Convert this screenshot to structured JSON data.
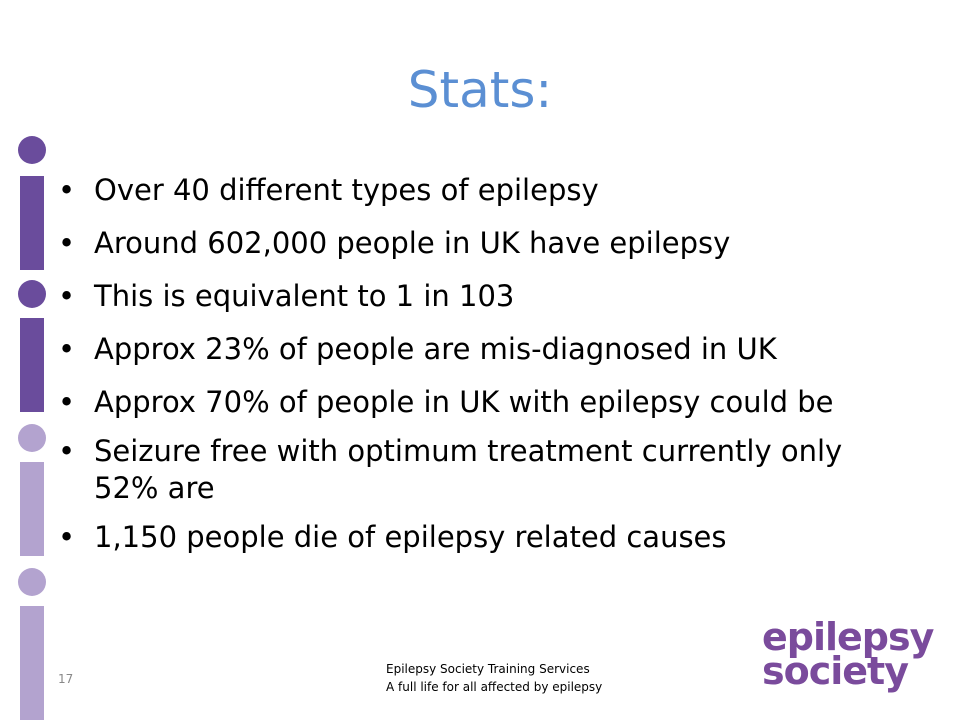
{
  "slide": {
    "title": "Stats:",
    "bullets": [
      "Over 40 different types of epilepsy",
      "Around 602,000 people in UK have epilepsy",
      "This is equivalent to 1 in 103",
      "Approx 23% of people are mis-diagnosed in UK",
      "Approx 70% of people in UK with epilepsy could be",
      "Seizure free with optimum treatment currently only 52% are",
      "1,150 people die of epilepsy related causes"
    ],
    "slide_number": "17",
    "footer_line1": "Epilepsy Society Training Services",
    "footer_line2": "A full life for all affected by epilepsy",
    "logo_line1": "epilepsy",
    "logo_line2": "society"
  },
  "colors": {
    "title": "#5b8fd3",
    "deco_dark": "#6a4c9c",
    "deco_light": "#b3a3cf",
    "logo": "#7a4b9c"
  }
}
